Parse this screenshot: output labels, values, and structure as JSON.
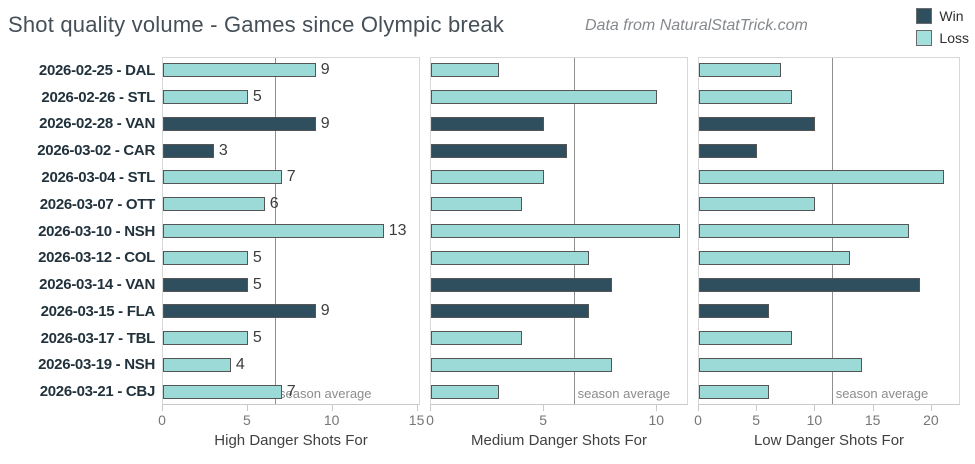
{
  "header": {
    "title": "Shot quality volume - Games since Olympic break",
    "source_note": "Data from NaturalStatTrick.com",
    "legend": [
      {
        "label": "Win",
        "color": "#2F4E5E"
      },
      {
        "label": "Loss",
        "color": "#A3DFDD"
      }
    ]
  },
  "colors": {
    "win": "#2F4E5E",
    "loss": "#9CDAD8",
    "bar_stroke": "#555555",
    "season_average_line": "#8F8F8F",
    "panel_border": "#D8D8D8",
    "axis_text": "#767676",
    "axis_title_text": "#404040",
    "row_label_text": "#22323C",
    "title_text": "#454F58",
    "source_text": "#85898D"
  },
  "chart_data": {
    "type": "bar",
    "orientation": "horizontal",
    "title": "Shot quality volume - Games since Olympic break",
    "legend_position": "top-right",
    "grid": false,
    "season_average_label": "season average",
    "categories": [
      "2026-02-25 - DAL",
      "2026-02-26 - STL",
      "2026-02-28 - VAN",
      "2026-03-02 - CAR",
      "2026-03-04 - STL",
      "2026-03-07 - OTT",
      "2026-03-10 - NSH",
      "2026-03-12 - COL",
      "2026-03-14 - VAN",
      "2026-03-15 - FLA",
      "2026-03-17 - TBL",
      "2026-03-19 - NSH",
      "2026-03-21 - CBJ"
    ],
    "results": [
      "loss",
      "loss",
      "win",
      "win",
      "loss",
      "loss",
      "loss",
      "loss",
      "win",
      "win",
      "loss",
      "loss",
      "loss"
    ],
    "panels": [
      {
        "xlabel": "High Danger Shots For",
        "values": [
          9,
          5,
          9,
          3,
          7,
          6,
          13,
          5,
          5,
          9,
          5,
          4,
          7
        ],
        "value_labels_shown": true,
        "ticks": [
          0,
          5,
          10,
          15
        ],
        "xlim": [
          0,
          15.2
        ],
        "season_average": 6.6
      },
      {
        "xlabel": "Medium Danger Shots For",
        "values": [
          3,
          10,
          5,
          6,
          5,
          4,
          11,
          7,
          8,
          7,
          4,
          8,
          3
        ],
        "value_labels_shown": false,
        "ticks": [
          0,
          5,
          10
        ],
        "xlim": [
          0,
          11.4
        ],
        "season_average": 6.3
      },
      {
        "xlabel": "Low Danger Shots For",
        "values": [
          7,
          8,
          10,
          5,
          21,
          10,
          18,
          13,
          19,
          6,
          8,
          14,
          6
        ],
        "value_labels_shown": false,
        "ticks": [
          0,
          5,
          10,
          15,
          20
        ],
        "xlim": [
          0,
          22.5
        ],
        "season_average": 11.4
      }
    ]
  }
}
